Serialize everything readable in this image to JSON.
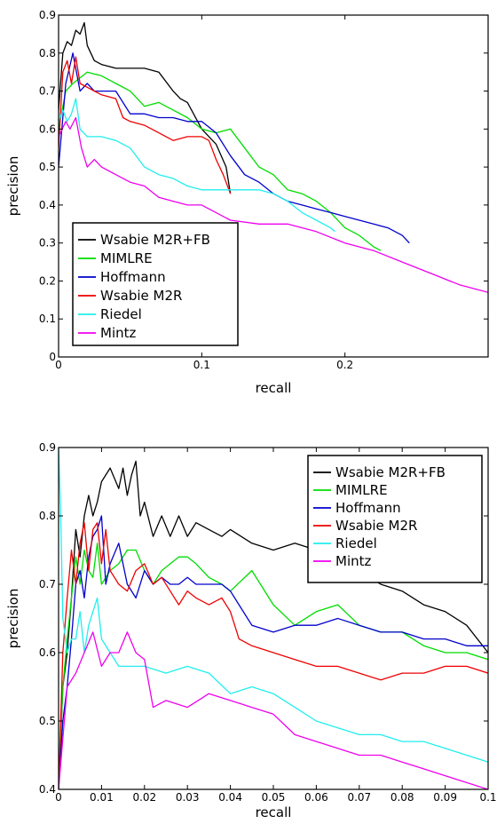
{
  "chart_data": [
    {
      "type": "line",
      "xlabel": "recall",
      "ylabel": "precision",
      "xlim": [
        0,
        0.3
      ],
      "ylim": [
        0,
        0.9
      ],
      "xticks": [
        0,
        0.1,
        0.2
      ],
      "xtick_labels": [
        "0",
        "0.1",
        "0.2"
      ],
      "yticks": [
        0,
        0.1,
        0.2,
        0.3,
        0.4,
        0.5,
        0.6,
        0.7,
        0.8,
        0.9
      ],
      "ytick_labels": [
        "0",
        "0.1",
        "0.2",
        "0.3",
        "0.4",
        "0.5",
        "0.6",
        "0.7",
        "0.8",
        "0.9"
      ],
      "grid": false,
      "legend_position": "bottom-left",
      "series": [
        {
          "name": "Wsabie M2R+FB",
          "color": "#000000",
          "x": [
            0.0,
            0.003,
            0.006,
            0.009,
            0.012,
            0.015,
            0.018,
            0.02,
            0.025,
            0.03,
            0.04,
            0.05,
            0.06,
            0.07,
            0.08,
            0.085,
            0.09,
            0.1,
            0.11,
            0.117,
            0.12
          ],
          "y": [
            0.65,
            0.8,
            0.83,
            0.82,
            0.86,
            0.85,
            0.88,
            0.82,
            0.78,
            0.77,
            0.76,
            0.76,
            0.76,
            0.75,
            0.7,
            0.68,
            0.67,
            0.6,
            0.56,
            0.5,
            0.43
          ]
        },
        {
          "name": "MIMLRE",
          "color": "#00dd00",
          "x": [
            0.0,
            0.005,
            0.01,
            0.02,
            0.03,
            0.04,
            0.05,
            0.06,
            0.07,
            0.08,
            0.09,
            0.1,
            0.11,
            0.12,
            0.13,
            0.14,
            0.15,
            0.16,
            0.17,
            0.18,
            0.19,
            0.2,
            0.21,
            0.22,
            0.225
          ],
          "y": [
            0.6,
            0.7,
            0.72,
            0.75,
            0.74,
            0.72,
            0.7,
            0.66,
            0.67,
            0.65,
            0.63,
            0.6,
            0.59,
            0.6,
            0.55,
            0.5,
            0.48,
            0.44,
            0.43,
            0.41,
            0.38,
            0.34,
            0.32,
            0.29,
            0.28
          ]
        },
        {
          "name": "Hoffmann",
          "color": "#0000cc",
          "x": [
            0.0,
            0.005,
            0.01,
            0.015,
            0.02,
            0.025,
            0.03,
            0.04,
            0.05,
            0.06,
            0.07,
            0.08,
            0.09,
            0.1,
            0.11,
            0.12,
            0.13,
            0.14,
            0.15,
            0.16,
            0.17,
            0.18,
            0.19,
            0.2,
            0.21,
            0.22,
            0.23,
            0.24,
            0.245
          ],
          "y": [
            0.5,
            0.72,
            0.8,
            0.7,
            0.72,
            0.7,
            0.7,
            0.7,
            0.64,
            0.64,
            0.63,
            0.63,
            0.62,
            0.62,
            0.59,
            0.53,
            0.48,
            0.46,
            0.43,
            0.41,
            0.4,
            0.39,
            0.38,
            0.37,
            0.36,
            0.35,
            0.34,
            0.32,
            0.3
          ]
        },
        {
          "name": "Wsabie M2R",
          "color": "#ee0000",
          "x": [
            0.0,
            0.003,
            0.006,
            0.009,
            0.012,
            0.015,
            0.02,
            0.025,
            0.03,
            0.04,
            0.045,
            0.05,
            0.06,
            0.07,
            0.08,
            0.09,
            0.1,
            0.105,
            0.11,
            0.115,
            0.12
          ],
          "y": [
            0.55,
            0.75,
            0.78,
            0.72,
            0.79,
            0.72,
            0.71,
            0.7,
            0.69,
            0.68,
            0.63,
            0.62,
            0.61,
            0.59,
            0.57,
            0.58,
            0.58,
            0.57,
            0.52,
            0.48,
            0.43
          ]
        },
        {
          "name": "Riedel",
          "color": "#22eeee",
          "x": [
            0.0,
            0.003,
            0.006,
            0.009,
            0.012,
            0.015,
            0.02,
            0.03,
            0.04,
            0.05,
            0.06,
            0.07,
            0.08,
            0.09,
            0.1,
            0.11,
            0.12,
            0.13,
            0.14,
            0.15,
            0.16,
            0.17,
            0.18,
            0.19,
            0.193
          ],
          "y": [
            0.62,
            0.65,
            0.62,
            0.64,
            0.68,
            0.6,
            0.58,
            0.58,
            0.57,
            0.55,
            0.5,
            0.48,
            0.47,
            0.45,
            0.44,
            0.44,
            0.44,
            0.44,
            0.44,
            0.43,
            0.41,
            0.38,
            0.36,
            0.34,
            0.33
          ]
        },
        {
          "name": "Mintz",
          "color": "#ee00ee",
          "x": [
            0.0,
            0.005,
            0.008,
            0.012,
            0.016,
            0.02,
            0.025,
            0.03,
            0.04,
            0.05,
            0.06,
            0.07,
            0.08,
            0.09,
            0.1,
            0.12,
            0.14,
            0.16,
            0.18,
            0.2,
            0.22,
            0.24,
            0.26,
            0.28,
            0.3
          ],
          "y": [
            0.58,
            0.62,
            0.6,
            0.63,
            0.55,
            0.5,
            0.52,
            0.5,
            0.48,
            0.46,
            0.45,
            0.42,
            0.41,
            0.4,
            0.4,
            0.36,
            0.35,
            0.35,
            0.33,
            0.3,
            0.28,
            0.25,
            0.22,
            0.19,
            0.17
          ]
        }
      ]
    },
    {
      "type": "line",
      "xlabel": "recall",
      "ylabel": "precision",
      "xlim": [
        0,
        0.1
      ],
      "ylim": [
        0.4,
        0.9
      ],
      "xticks": [
        0,
        0.01,
        0.02,
        0.03,
        0.04,
        0.05,
        0.06,
        0.07,
        0.08,
        0.09,
        0.1
      ],
      "xtick_labels": [
        "0",
        "0.01",
        "0.02",
        "0.03",
        "0.04",
        "0.05",
        "0.06",
        "0.07",
        "0.08",
        "0.09",
        "0.1"
      ],
      "yticks": [
        0.4,
        0.5,
        0.6,
        0.7,
        0.8,
        0.9
      ],
      "ytick_labels": [
        "0.4",
        "0.5",
        "0.6",
        "0.7",
        "0.8",
        "0.9"
      ],
      "grid": false,
      "legend_position": "top-right",
      "series": [
        {
          "name": "Wsabie M2R+FB",
          "color": "#000000",
          "x": [
            0.0,
            0.001,
            0.002,
            0.003,
            0.004,
            0.005,
            0.006,
            0.007,
            0.008,
            0.009,
            0.01,
            0.012,
            0.014,
            0.015,
            0.016,
            0.017,
            0.018,
            0.019,
            0.02,
            0.022,
            0.024,
            0.026,
            0.028,
            0.03,
            0.032,
            0.035,
            0.038,
            0.04,
            0.045,
            0.05,
            0.055,
            0.06,
            0.065,
            0.07,
            0.075,
            0.08,
            0.085,
            0.09,
            0.095,
            0.1
          ],
          "y": [
            0.4,
            0.55,
            0.6,
            0.68,
            0.78,
            0.74,
            0.8,
            0.83,
            0.8,
            0.82,
            0.85,
            0.87,
            0.84,
            0.87,
            0.83,
            0.86,
            0.88,
            0.8,
            0.82,
            0.77,
            0.8,
            0.77,
            0.8,
            0.77,
            0.79,
            0.78,
            0.77,
            0.78,
            0.76,
            0.75,
            0.76,
            0.75,
            0.74,
            0.72,
            0.7,
            0.69,
            0.67,
            0.66,
            0.64,
            0.6
          ]
        },
        {
          "name": "MIMLRE",
          "color": "#00dd00",
          "x": [
            0.0,
            0.001,
            0.002,
            0.003,
            0.004,
            0.005,
            0.006,
            0.007,
            0.008,
            0.009,
            0.01,
            0.012,
            0.014,
            0.016,
            0.018,
            0.02,
            0.022,
            0.024,
            0.026,
            0.028,
            0.03,
            0.032,
            0.035,
            0.038,
            0.04,
            0.045,
            0.05,
            0.055,
            0.06,
            0.065,
            0.07,
            0.075,
            0.08,
            0.085,
            0.09,
            0.095,
            0.1
          ],
          "y": [
            0.4,
            0.55,
            0.62,
            0.68,
            0.74,
            0.7,
            0.75,
            0.72,
            0.71,
            0.76,
            0.7,
            0.72,
            0.73,
            0.75,
            0.75,
            0.72,
            0.7,
            0.72,
            0.73,
            0.74,
            0.74,
            0.73,
            0.71,
            0.7,
            0.69,
            0.72,
            0.67,
            0.64,
            0.66,
            0.67,
            0.64,
            0.63,
            0.63,
            0.61,
            0.6,
            0.6,
            0.59
          ]
        },
        {
          "name": "Hoffmann",
          "color": "#0000cc",
          "x": [
            0.0,
            0.001,
            0.002,
            0.003,
            0.004,
            0.005,
            0.006,
            0.007,
            0.008,
            0.009,
            0.01,
            0.011,
            0.012,
            0.014,
            0.016,
            0.018,
            0.02,
            0.022,
            0.024,
            0.026,
            0.028,
            0.03,
            0.032,
            0.035,
            0.038,
            0.04,
            0.042,
            0.045,
            0.05,
            0.055,
            0.06,
            0.065,
            0.07,
            0.075,
            0.08,
            0.085,
            0.09,
            0.095,
            0.1
          ],
          "y": [
            0.4,
            0.5,
            0.55,
            0.62,
            0.7,
            0.72,
            0.68,
            0.74,
            0.77,
            0.78,
            0.8,
            0.7,
            0.73,
            0.76,
            0.7,
            0.68,
            0.72,
            0.7,
            0.71,
            0.7,
            0.7,
            0.71,
            0.7,
            0.7,
            0.7,
            0.69,
            0.67,
            0.64,
            0.63,
            0.64,
            0.64,
            0.65,
            0.64,
            0.63,
            0.63,
            0.62,
            0.62,
            0.61,
            0.61
          ]
        },
        {
          "name": "Wsabie M2R",
          "color": "#ee0000",
          "x": [
            0.0,
            0.001,
            0.002,
            0.003,
            0.004,
            0.005,
            0.006,
            0.007,
            0.008,
            0.009,
            0.01,
            0.011,
            0.012,
            0.014,
            0.016,
            0.018,
            0.02,
            0.022,
            0.024,
            0.026,
            0.028,
            0.03,
            0.032,
            0.035,
            0.038,
            0.04,
            0.042,
            0.045,
            0.05,
            0.055,
            0.06,
            0.065,
            0.07,
            0.075,
            0.08,
            0.085,
            0.09,
            0.095,
            0.1
          ],
          "y": [
            0.4,
            0.6,
            0.68,
            0.75,
            0.7,
            0.76,
            0.79,
            0.72,
            0.78,
            0.79,
            0.73,
            0.78,
            0.72,
            0.7,
            0.69,
            0.72,
            0.73,
            0.7,
            0.71,
            0.69,
            0.67,
            0.69,
            0.68,
            0.67,
            0.68,
            0.66,
            0.62,
            0.61,
            0.6,
            0.59,
            0.58,
            0.58,
            0.57,
            0.56,
            0.57,
            0.57,
            0.58,
            0.58,
            0.57
          ]
        },
        {
          "name": "Riedel",
          "color": "#22eeee",
          "x": [
            0.0,
            0.0005,
            0.001,
            0.002,
            0.003,
            0.004,
            0.005,
            0.006,
            0.007,
            0.008,
            0.009,
            0.01,
            0.012,
            0.014,
            0.016,
            0.018,
            0.02,
            0.025,
            0.03,
            0.035,
            0.04,
            0.045,
            0.05,
            0.055,
            0.06,
            0.065,
            0.07,
            0.075,
            0.08,
            0.085,
            0.09,
            0.095,
            0.1
          ],
          "y": [
            0.9,
            0.8,
            0.65,
            0.6,
            0.62,
            0.62,
            0.66,
            0.6,
            0.64,
            0.66,
            0.68,
            0.62,
            0.6,
            0.58,
            0.58,
            0.58,
            0.58,
            0.57,
            0.58,
            0.57,
            0.54,
            0.55,
            0.54,
            0.52,
            0.5,
            0.49,
            0.48,
            0.48,
            0.47,
            0.47,
            0.46,
            0.45,
            0.44
          ]
        },
        {
          "name": "Mintz",
          "color": "#ee00ee",
          "x": [
            0.0,
            0.002,
            0.004,
            0.006,
            0.008,
            0.01,
            0.012,
            0.014,
            0.016,
            0.018,
            0.02,
            0.022,
            0.025,
            0.03,
            0.035,
            0.04,
            0.045,
            0.05,
            0.055,
            0.06,
            0.065,
            0.07,
            0.075,
            0.08,
            0.085,
            0.09,
            0.1
          ],
          "y": [
            0.4,
            0.55,
            0.57,
            0.6,
            0.63,
            0.58,
            0.6,
            0.6,
            0.63,
            0.6,
            0.59,
            0.52,
            0.53,
            0.52,
            0.54,
            0.53,
            0.52,
            0.51,
            0.48,
            0.47,
            0.46,
            0.45,
            0.45,
            0.44,
            0.43,
            0.42,
            0.4
          ]
        }
      ]
    }
  ]
}
